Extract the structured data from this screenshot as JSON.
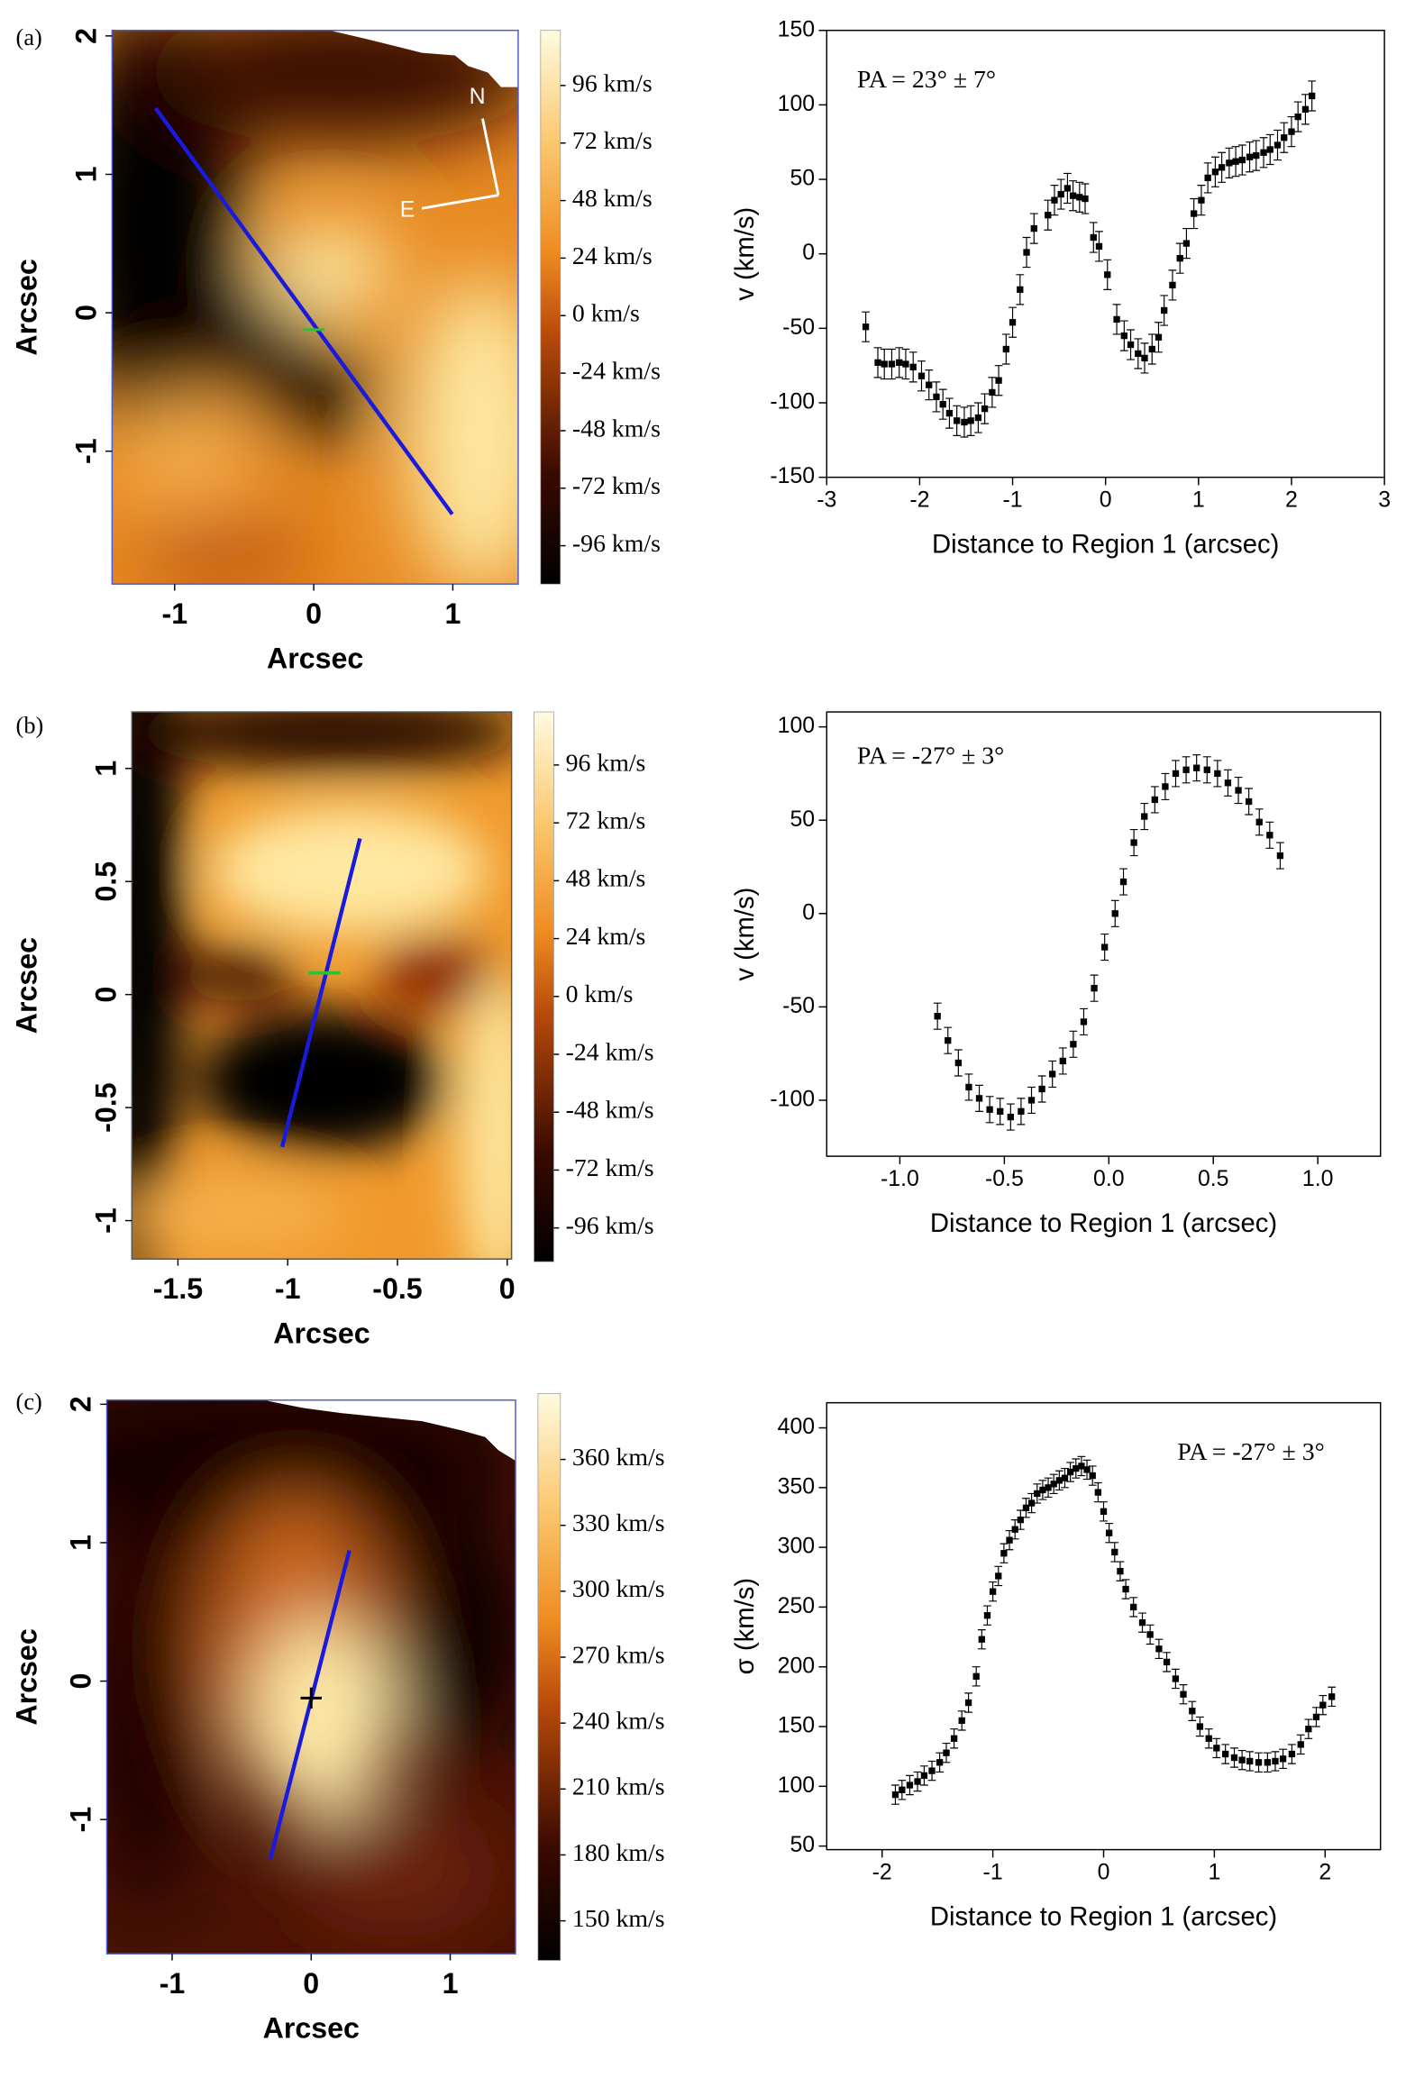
{
  "chart_data": [
    {
      "type": "heatmap",
      "panel_label": "(a)",
      "xlabel": "Arcsec",
      "ylabel": "Arcsec",
      "xlim": [
        -1.45,
        1.47
      ],
      "ylim": [
        -1.96,
        2.04
      ],
      "xticks": [
        -1,
        0,
        1
      ],
      "yticks": [
        -1,
        0,
        1,
        2
      ],
      "annotations": [
        "N",
        "E"
      ],
      "colorbar": {
        "lim": [
          -112,
          119
        ],
        "ticks": [
          {
            "value": -96,
            "label": "-96 km/s"
          },
          {
            "value": -72,
            "label": "-72 km/s"
          },
          {
            "value": -48,
            "label": "-48 km/s"
          },
          {
            "value": -24,
            "label": "-24 km/s"
          },
          {
            "value": 0,
            "label": "0 km/s"
          },
          {
            "value": 24,
            "label": "24 km/s"
          },
          {
            "value": 48,
            "label": "48 km/s"
          },
          {
            "value": 72,
            "label": "72 km/s"
          },
          {
            "value": 96,
            "label": "96 km/s"
          }
        ]
      }
    },
    {
      "type": "scatter",
      "xlabel": "Distance to Region 1 (arcsec)",
      "ylabel": "v (km/s)",
      "annotation": "PA = 23° ± 7°",
      "color": "#000000",
      "error": 10,
      "xlim": [
        -3,
        3
      ],
      "ylim": [
        -150,
        150
      ],
      "xticks": [
        -3,
        -2,
        -1,
        0,
        1,
        2,
        3
      ],
      "yticks": [
        -150,
        -100,
        -50,
        0,
        50,
        100,
        150
      ],
      "x": [
        -2.58,
        -2.45,
        -2.38,
        -2.3,
        -2.22,
        -2.15,
        -2.07,
        -1.98,
        -1.9,
        -1.82,
        -1.75,
        -1.68,
        -1.6,
        -1.52,
        -1.45,
        -1.37,
        -1.3,
        -1.22,
        -1.15,
        -1.07,
        -1.0,
        -0.92,
        -0.85,
        -0.77,
        -0.62,
        -0.55,
        -0.48,
        -0.41,
        -0.35,
        -0.28,
        -0.22,
        -0.13,
        -0.07,
        0.02,
        0.12,
        0.2,
        0.27,
        0.35,
        0.42,
        0.5,
        0.57,
        0.63,
        0.72,
        0.8,
        0.87,
        0.95,
        1.03,
        1.1,
        1.18,
        1.25,
        1.33,
        1.4,
        1.47,
        1.55,
        1.62,
        1.7,
        1.77,
        1.85,
        1.92,
        2.0,
        2.07,
        2.15,
        2.22
      ],
      "values": [
        -49,
        -73,
        -74,
        -74,
        -73,
        -74,
        -76,
        -82,
        -88,
        -96,
        -101,
        -107,
        -112,
        -113,
        -112,
        -110,
        -104,
        -93,
        -85,
        -64,
        -46,
        -24,
        1,
        17,
        26,
        36,
        40,
        44,
        39,
        38,
        37,
        11,
        5,
        -14,
        -44,
        -55,
        -61,
        -67,
        -70,
        -64,
        -56,
        -38,
        -21,
        -3,
        7,
        27,
        36,
        51,
        55,
        58,
        61,
        62,
        63,
        65,
        66,
        68,
        70,
        73,
        78,
        82,
        92,
        97,
        106
      ]
    },
    {
      "type": "heatmap",
      "panel_label": "(b)",
      "xlabel": "Arcsec",
      "ylabel": "Arcsec",
      "xlim": [
        -1.71,
        0.02
      ],
      "ylim": [
        -1.17,
        1.25
      ],
      "xticks": [
        -1.5,
        -1,
        -0.5,
        0
      ],
      "yticks": [
        -1,
        -0.5,
        0,
        0.5,
        1
      ],
      "colorbar": {
        "lim": [
          -110,
          118
        ],
        "ticks": [
          {
            "value": -96,
            "label": "-96 km/s"
          },
          {
            "value": -72,
            "label": "-72 km/s"
          },
          {
            "value": -48,
            "label": "-48 km/s"
          },
          {
            "value": -24,
            "label": "-24 km/s"
          },
          {
            "value": 0,
            "label": "0 km/s"
          },
          {
            "value": 24,
            "label": "24 km/s"
          },
          {
            "value": 48,
            "label": "48 km/s"
          },
          {
            "value": 72,
            "label": "72 km/s"
          },
          {
            "value": 96,
            "label": "96 km/s"
          }
        ]
      }
    },
    {
      "type": "scatter",
      "xlabel": "Distance to Region 1 (arcsec)",
      "ylabel": "v (km/s)",
      "annotation": "PA = -27° ± 3°",
      "color": "#000000",
      "error": 7,
      "xlim": [
        -1.35,
        1.3
      ],
      "ylim": [
        -130,
        108
      ],
      "xticks": [
        {
          "value": -1,
          "label": "-1.0"
        },
        -0.5,
        {
          "value": 0,
          "label": "0.0"
        },
        0.5,
        {
          "value": 1,
          "label": "1.0"
        }
      ],
      "yticks": [
        -100,
        -50,
        0,
        50,
        100
      ],
      "x": [
        -0.82,
        -0.77,
        -0.72,
        -0.67,
        -0.62,
        -0.57,
        -0.52,
        -0.47,
        -0.42,
        -0.37,
        -0.32,
        -0.27,
        -0.22,
        -0.17,
        -0.12,
        -0.07,
        -0.02,
        0.03,
        0.07,
        0.12,
        0.17,
        0.22,
        0.27,
        0.32,
        0.37,
        0.42,
        0.47,
        0.52,
        0.57,
        0.62,
        0.67,
        0.72,
        0.77,
        0.82
      ],
      "values": [
        -55,
        -68,
        -80,
        -93,
        -99,
        -105,
        -106,
        -109,
        -106,
        -100,
        -94,
        -86,
        -79,
        -70,
        -58,
        -40,
        -18,
        0,
        17,
        38,
        52,
        61,
        68,
        75,
        77,
        78,
        77,
        75,
        70,
        66,
        60,
        49,
        42,
        31
      ]
    },
    {
      "type": "heatmap",
      "panel_label": "(c)",
      "xlabel": "Arcsec",
      "ylabel": "Arcsec",
      "xlim": [
        -1.47,
        1.47
      ],
      "ylim": [
        -1.97,
        2.03
      ],
      "xticks": [
        -1,
        0,
        1
      ],
      "yticks": [
        -1,
        0,
        1,
        2
      ],
      "colorbar": {
        "lim": [
          132,
          390
        ],
        "ticks": [
          {
            "value": 150,
            "label": "150 km/s"
          },
          {
            "value": 180,
            "label": "180 km/s"
          },
          {
            "value": 210,
            "label": "210 km/s"
          },
          {
            "value": 240,
            "label": "240 km/s"
          },
          {
            "value": 270,
            "label": "270 km/s"
          },
          {
            "value": 300,
            "label": "300 km/s"
          },
          {
            "value": 330,
            "label": "330 km/s"
          },
          {
            "value": 360,
            "label": "360 km/s"
          }
        ]
      }
    },
    {
      "type": "scatter",
      "xlabel": "Distance to Region 1 (arcsec)",
      "ylabel": "σ (km/s)",
      "annotation": "PA = -27° ± 3°",
      "color": "#000000",
      "error": 8,
      "xlim": [
        -2.5,
        2.5
      ],
      "ylim": [
        47,
        421
      ],
      "xticks": [
        -2,
        -1,
        0,
        1,
        2
      ],
      "yticks": [
        50,
        100,
        150,
        200,
        250,
        300,
        350,
        400
      ],
      "x": [
        -1.88,
        -1.82,
        -1.75,
        -1.68,
        -1.62,
        -1.55,
        -1.48,
        -1.42,
        -1.35,
        -1.28,
        -1.22,
        -1.15,
        -1.1,
        -1.05,
        -1.0,
        -0.95,
        -0.9,
        -0.85,
        -0.8,
        -0.75,
        -0.7,
        -0.65,
        -0.6,
        -0.55,
        -0.5,
        -0.45,
        -0.4,
        -0.35,
        -0.3,
        -0.25,
        -0.2,
        -0.15,
        -0.1,
        -0.05,
        0.0,
        0.05,
        0.1,
        0.15,
        0.2,
        0.27,
        0.35,
        0.42,
        0.5,
        0.57,
        0.65,
        0.72,
        0.8,
        0.87,
        0.95,
        1.02,
        1.1,
        1.18,
        1.25,
        1.32,
        1.4,
        1.48,
        1.55,
        1.62,
        1.7,
        1.78,
        1.85,
        1.92,
        1.98,
        2.06
      ],
      "values": [
        93,
        97,
        101,
        104,
        109,
        113,
        120,
        128,
        140,
        155,
        170,
        192,
        223,
        243,
        263,
        276,
        295,
        306,
        315,
        323,
        333,
        337,
        345,
        348,
        350,
        353,
        356,
        358,
        363,
        366,
        368,
        365,
        360,
        346,
        330,
        312,
        296,
        280,
        265,
        250,
        237,
        227,
        215,
        204,
        190,
        177,
        163,
        150,
        140,
        132,
        127,
        124,
        122,
        121,
        120,
        120,
        121,
        123,
        127,
        135,
        148,
        158,
        168,
        175
      ]
    }
  ]
}
